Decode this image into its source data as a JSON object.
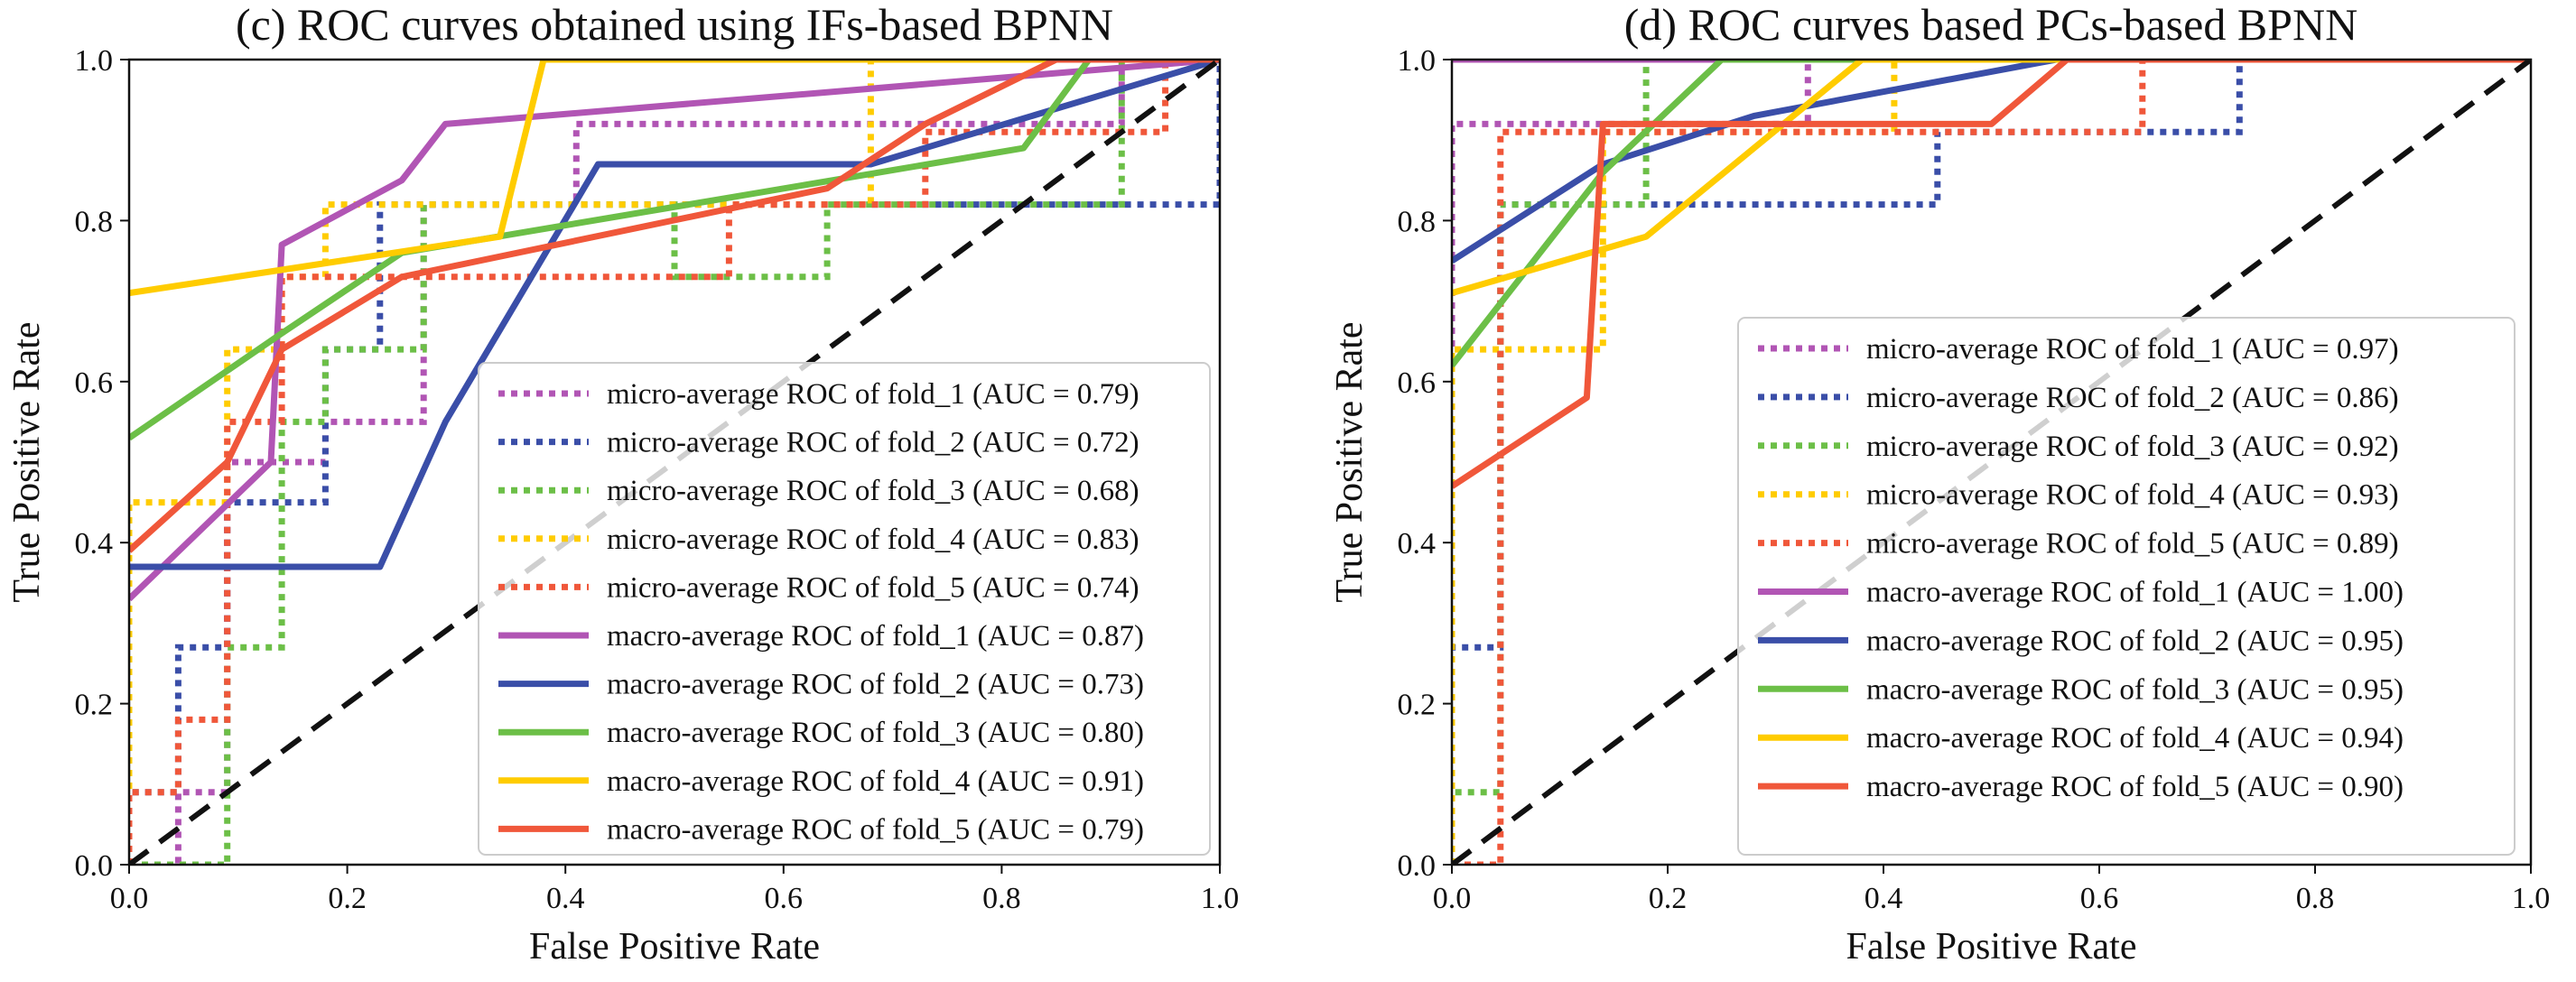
{
  "colors": {
    "purple": "#b155b4",
    "blue": "#3a4ea8",
    "green": "#6cbf47",
    "yellow": "#ffcc00",
    "red": "#f0573a",
    "diagonal": "#111111"
  },
  "chart_data": [
    {
      "type": "line",
      "title": "(c) ROC curves obtained using IFs-based BPNN",
      "xlabel": "False Positive Rate",
      "ylabel": "True Positive Rate",
      "xlim": [
        0,
        1
      ],
      "ylim": [
        0,
        1
      ],
      "xticks": [
        "0.0",
        "0.2",
        "0.4",
        "0.6",
        "0.8",
        "1.0"
      ],
      "yticks": [
        "0.0",
        "0.2",
        "0.4",
        "0.6",
        "0.8",
        "1.0"
      ],
      "grid": false,
      "legend_position": "lower-right",
      "reference_line": {
        "style": "dashed",
        "points": [
          [
            0,
            0
          ],
          [
            1,
            1
          ]
        ]
      },
      "series": [
        {
          "name": "micro-average ROC of fold_1 (AUC = 0.79)",
          "color_key": "purple",
          "style": "dotted",
          "points": [
            [
              0,
              0
            ],
            [
              0.045,
              0
            ],
            [
              0.045,
              0.09
            ],
            [
              0.09,
              0.09
            ],
            [
              0.09,
              0.5
            ],
            [
              0.18,
              0.5
            ],
            [
              0.18,
              0.55
            ],
            [
              0.27,
              0.55
            ],
            [
              0.27,
              0.82
            ],
            [
              0.41,
              0.82
            ],
            [
              0.41,
              0.92
            ],
            [
              0.91,
              0.92
            ],
            [
              0.91,
              1
            ],
            [
              1,
              1
            ]
          ]
        },
        {
          "name": "micro-average ROC of fold_2 (AUC = 0.72)",
          "color_key": "blue",
          "style": "dotted",
          "points": [
            [
              0,
              0
            ],
            [
              0,
              0.09
            ],
            [
              0.045,
              0.09
            ],
            [
              0.045,
              0.27
            ],
            [
              0.09,
              0.27
            ],
            [
              0.09,
              0.45
            ],
            [
              0.18,
              0.45
            ],
            [
              0.18,
              0.64
            ],
            [
              0.23,
              0.64
            ],
            [
              0.23,
              0.82
            ],
            [
              1,
              0.82
            ],
            [
              1,
              1
            ]
          ]
        },
        {
          "name": "micro-average ROC of fold_3 (AUC = 0.68)",
          "color_key": "green",
          "style": "dotted",
          "points": [
            [
              0,
              0
            ],
            [
              0.09,
              0
            ],
            [
              0.09,
              0.27
            ],
            [
              0.14,
              0.27
            ],
            [
              0.14,
              0.55
            ],
            [
              0.18,
              0.55
            ],
            [
              0.18,
              0.64
            ],
            [
              0.27,
              0.64
            ],
            [
              0.27,
              0.82
            ],
            [
              0.5,
              0.82
            ],
            [
              0.5,
              0.73
            ],
            [
              0.64,
              0.73
            ],
            [
              0.64,
              0.82
            ],
            [
              0.91,
              0.82
            ],
            [
              0.91,
              1
            ],
            [
              1,
              1
            ]
          ]
        },
        {
          "name": "micro-average ROC of fold_4 (AUC = 0.83)",
          "color_key": "yellow",
          "style": "dotted",
          "points": [
            [
              0,
              0
            ],
            [
              0,
              0.45
            ],
            [
              0.09,
              0.45
            ],
            [
              0.09,
              0.64
            ],
            [
              0.14,
              0.64
            ],
            [
              0.14,
              0.73
            ],
            [
              0.18,
              0.73
            ],
            [
              0.18,
              0.82
            ],
            [
              0.68,
              0.82
            ],
            [
              0.68,
              1
            ],
            [
              1,
              1
            ]
          ]
        },
        {
          "name": "micro-average ROC of fold_5 (AUC = 0.74)",
          "color_key": "red",
          "style": "dotted",
          "points": [
            [
              0,
              0
            ],
            [
              0,
              0.09
            ],
            [
              0.045,
              0.09
            ],
            [
              0.045,
              0.18
            ],
            [
              0.09,
              0.18
            ],
            [
              0.09,
              0.55
            ],
            [
              0.14,
              0.55
            ],
            [
              0.14,
              0.73
            ],
            [
              0.55,
              0.73
            ],
            [
              0.55,
              0.82
            ],
            [
              0.73,
              0.82
            ],
            [
              0.73,
              0.91
            ],
            [
              0.95,
              0.91
            ],
            [
              0.95,
              1
            ],
            [
              1,
              1
            ]
          ]
        },
        {
          "name": "macro-average ROC of fold_1 (AUC = 0.87)",
          "color_key": "purple",
          "style": "solid",
          "points": [
            [
              0,
              0.33
            ],
            [
              0.13,
              0.5
            ],
            [
              0.14,
              0.77
            ],
            [
              0.25,
              0.85
            ],
            [
              0.29,
              0.92
            ],
            [
              1,
              1
            ]
          ]
        },
        {
          "name": "macro-average ROC of fold_2 (AUC = 0.73)",
          "color_key": "blue",
          "style": "solid",
          "points": [
            [
              0,
              0.37
            ],
            [
              0.23,
              0.37
            ],
            [
              0.29,
              0.55
            ],
            [
              0.43,
              0.87
            ],
            [
              0.68,
              0.87
            ],
            [
              1,
              1
            ]
          ]
        },
        {
          "name": "macro-average ROC of fold_3 (AUC = 0.80)",
          "color_key": "green",
          "style": "solid",
          "points": [
            [
              0,
              0.53
            ],
            [
              0.14,
              0.66
            ],
            [
              0.25,
              0.76
            ],
            [
              0.82,
              0.89
            ],
            [
              0.88,
              1
            ],
            [
              1,
              1
            ]
          ]
        },
        {
          "name": "macro-average ROC of fold_4 (AUC = 0.91)",
          "color_key": "yellow",
          "style": "solid",
          "points": [
            [
              0,
              0.71
            ],
            [
              0.34,
              0.78
            ],
            [
              0.38,
              1
            ],
            [
              1,
              1
            ]
          ]
        },
        {
          "name": "macro-average ROC of fold_5 (AUC = 0.79)",
          "color_key": "red",
          "style": "solid",
          "points": [
            [
              0,
              0.39
            ],
            [
              0.09,
              0.5
            ],
            [
              0.14,
              0.64
            ],
            [
              0.25,
              0.73
            ],
            [
              0.64,
              0.84
            ],
            [
              0.73,
              0.92
            ],
            [
              0.85,
              1
            ],
            [
              1,
              1
            ]
          ]
        }
      ]
    },
    {
      "type": "line",
      "title": "(d) ROC curves based PCs-based BPNN",
      "xlabel": "False Positive Rate",
      "ylabel": "True Positive Rate",
      "xlim": [
        0,
        1
      ],
      "ylim": [
        0,
        1
      ],
      "xticks": [
        "0.0",
        "0.2",
        "0.4",
        "0.6",
        "0.8",
        "1.0"
      ],
      "yticks": [
        "0.0",
        "0.2",
        "0.4",
        "0.6",
        "0.8",
        "1.0"
      ],
      "grid": false,
      "legend_position": "lower-right",
      "reference_line": {
        "style": "dashed",
        "points": [
          [
            0,
            0
          ],
          [
            1,
            1
          ]
        ]
      },
      "series": [
        {
          "name": "micro-average ROC of fold_1 (AUC = 0.97)",
          "color_key": "purple",
          "style": "dotted",
          "points": [
            [
              0,
              0
            ],
            [
              0,
              0.92
            ],
            [
              0.33,
              0.92
            ],
            [
              0.33,
              1
            ],
            [
              1,
              1
            ]
          ]
        },
        {
          "name": "micro-average ROC of fold_2 (AUC = 0.86)",
          "color_key": "blue",
          "style": "dotted",
          "points": [
            [
              0,
              0
            ],
            [
              0,
              0.27
            ],
            [
              0.045,
              0.27
            ],
            [
              0.045,
              0.82
            ],
            [
              0.45,
              0.82
            ],
            [
              0.45,
              0.91
            ],
            [
              0.73,
              0.91
            ],
            [
              0.73,
              1
            ],
            [
              1,
              1
            ]
          ]
        },
        {
          "name": "micro-average ROC of fold_3 (AUC = 0.92)",
          "color_key": "green",
          "style": "dotted",
          "points": [
            [
              0,
              0
            ],
            [
              0,
              0.09
            ],
            [
              0.045,
              0.09
            ],
            [
              0.045,
              0.82
            ],
            [
              0.18,
              0.82
            ],
            [
              0.18,
              1
            ],
            [
              1,
              1
            ]
          ]
        },
        {
          "name": "micro-average ROC of fold_4 (AUC = 0.93)",
          "color_key": "yellow",
          "style": "dotted",
          "points": [
            [
              0,
              0
            ],
            [
              0,
              0.64
            ],
            [
              0.14,
              0.64
            ],
            [
              0.14,
              0.91
            ],
            [
              0.41,
              0.91
            ],
            [
              0.41,
              1
            ],
            [
              1,
              1
            ]
          ]
        },
        {
          "name": "micro-average ROC of fold_5 (AUC = 0.89)",
          "color_key": "red",
          "style": "dotted",
          "points": [
            [
              0,
              0
            ],
            [
              0.045,
              0
            ],
            [
              0.045,
              0.91
            ],
            [
              0.64,
              0.91
            ],
            [
              0.64,
              1
            ],
            [
              1,
              1
            ]
          ]
        },
        {
          "name": "macro-average ROC of fold_1 (AUC = 1.00)",
          "color_key": "purple",
          "style": "solid",
          "points": [
            [
              0,
              1
            ],
            [
              1,
              1
            ]
          ]
        },
        {
          "name": "macro-average ROC of fold_2 (AUC = 0.95)",
          "color_key": "blue",
          "style": "solid",
          "points": [
            [
              0,
              0.75
            ],
            [
              0.14,
              0.87
            ],
            [
              0.28,
              0.93
            ],
            [
              0.56,
              1
            ],
            [
              1,
              1
            ]
          ]
        },
        {
          "name": "macro-average ROC of fold_3 (AUC = 0.95)",
          "color_key": "green",
          "style": "solid",
          "points": [
            [
              0,
              0.62
            ],
            [
              0.14,
              0.86
            ],
            [
              0.25,
              1
            ],
            [
              1,
              1
            ]
          ]
        },
        {
          "name": "macro-average ROC of fold_4 (AUC = 0.94)",
          "color_key": "yellow",
          "style": "solid",
          "points": [
            [
              0,
              0.71
            ],
            [
              0.18,
              0.78
            ],
            [
              0.28,
              0.89
            ],
            [
              0.38,
              1
            ],
            [
              1,
              1
            ]
          ]
        },
        {
          "name": "macro-average ROC of fold_5 (AUC = 0.90)",
          "color_key": "red",
          "style": "solid",
          "points": [
            [
              0,
              0.47
            ],
            [
              0.125,
              0.58
            ],
            [
              0.14,
              0.92
            ],
            [
              0.5,
              0.92
            ],
            [
              0.57,
              1
            ],
            [
              1,
              1
            ]
          ]
        }
      ]
    }
  ]
}
